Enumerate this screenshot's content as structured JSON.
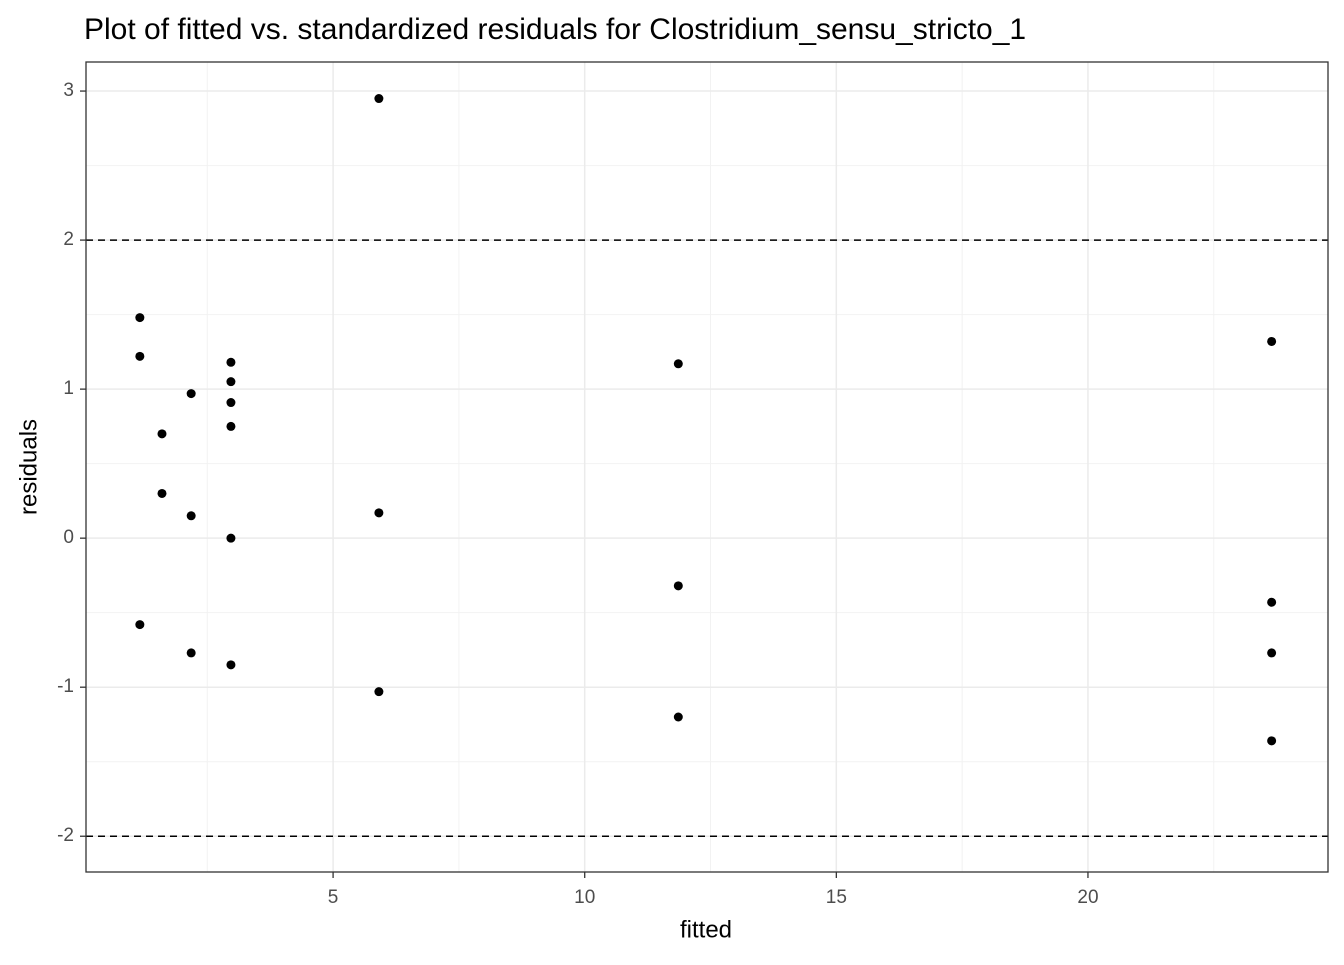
{
  "chart_data": {
    "type": "scatter",
    "title": "Plot of fitted vs. standardized residuals for Clostridium_sensu_stricto_1",
    "x_label": "fitted",
    "y_label": "residuals",
    "series": [
      {
        "color": "#000000",
        "x": [
          1.16,
          1.16,
          1.16,
          1.6,
          1.6,
          2.18,
          2.18,
          2.18,
          2.97,
          2.97,
          2.97,
          2.97,
          2.97,
          2.97,
          5.91,
          5.91,
          5.91,
          11.86,
          11.86,
          11.86,
          23.65,
          23.65,
          23.65,
          23.65
        ],
        "values": [
          1.48,
          1.22,
          -0.58,
          0.7,
          0.3,
          0.97,
          0.15,
          -0.77,
          1.18,
          1.05,
          0.91,
          0.75,
          0.0,
          -0.85,
          2.95,
          0.17,
          -1.03,
          1.17,
          -0.32,
          -1.2,
          1.32,
          -0.43,
          -0.77,
          -1.36
        ]
      }
    ],
    "xlim": [
      0.09,
      24.77
    ],
    "ylim": [
      -2.24,
      3.195
    ],
    "xticks": [
      5,
      10,
      15,
      20
    ],
    "yticks": [
      -2,
      -1,
      0,
      1,
      2,
      3
    ],
    "xminor": [
      2.5,
      7.5,
      12.5,
      17.5,
      22.5
    ],
    "yminor": [
      -1.5,
      -0.5,
      0.5,
      1.5,
      2.5
    ],
    "hlines": [
      2,
      -2
    ],
    "grid": true
  }
}
